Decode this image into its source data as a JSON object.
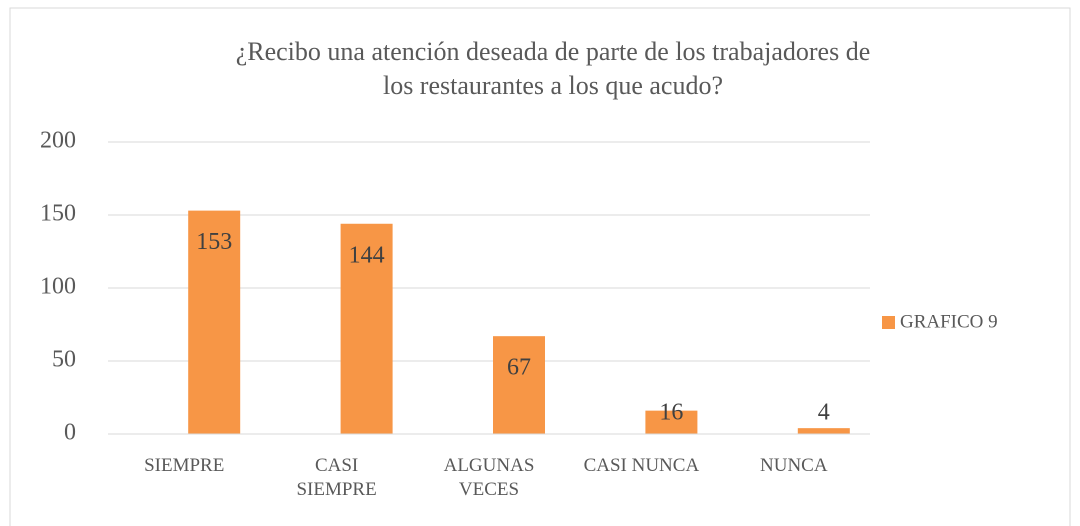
{
  "chart_data": {
    "type": "bar",
    "title": [
      "¿Recibo una atención deseada de parte de los trabajadores de",
      "los restaurantes a los que acudo?"
    ],
    "categories": [
      "SIEMPRE",
      "CASI SIEMPRE",
      "ALGUNAS VECES",
      "CASI NUNCA",
      "NUNCA"
    ],
    "series": [
      {
        "name": "GRAFICO 9",
        "color": "#f79646",
        "values": [
          153,
          144,
          67,
          16,
          4
        ]
      }
    ],
    "ylim": [
      0,
      200
    ],
    "yticks": [
      0,
      50,
      100,
      150,
      200
    ],
    "grid": true,
    "legend": "right"
  }
}
